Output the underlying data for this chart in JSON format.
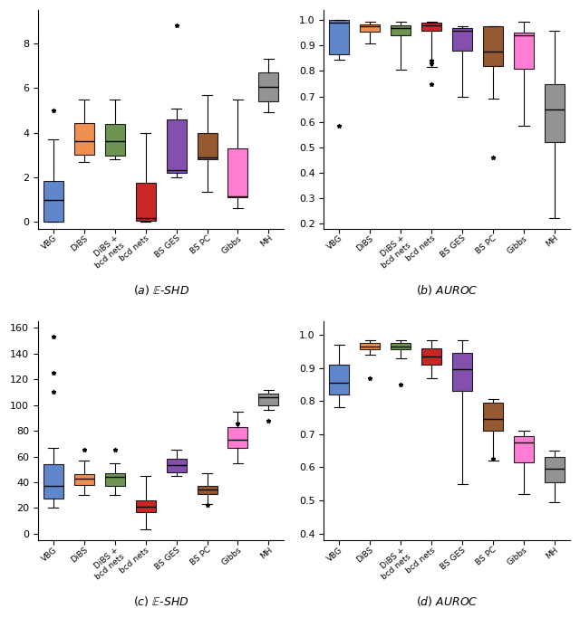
{
  "a_boxes": [
    {
      "label": "VBG",
      "color": "#4472C4",
      "whislo": 0.0,
      "q1": 0.0,
      "med": 1.0,
      "q3": 1.85,
      "whishi": 3.7,
      "fliers": [
        5.0
      ]
    },
    {
      "label": "DiBS",
      "color": "#ED7D31",
      "whislo": 2.7,
      "q1": 3.0,
      "med": 3.6,
      "q3": 4.45,
      "whishi": 5.5,
      "fliers": []
    },
    {
      "label": "DiBS +\nbcd nets",
      "color": "#548235",
      "whislo": 2.8,
      "q1": 2.95,
      "med": 3.6,
      "q3": 4.4,
      "whishi": 5.5,
      "fliers": []
    },
    {
      "label": "bcd nets",
      "color": "#C00000",
      "whislo": 0.0,
      "q1": 0.05,
      "med": 0.15,
      "q3": 1.75,
      "whishi": 4.0,
      "fliers": []
    },
    {
      "label": "BS GES",
      "color": "#7030A0",
      "whislo": 2.0,
      "q1": 2.2,
      "med": 2.3,
      "q3": 4.6,
      "whishi": 5.1,
      "fliers": [
        8.8
      ]
    },
    {
      "label": "BS PC",
      "color": "#843C0C",
      "whislo": 1.35,
      "q1": 2.8,
      "med": 2.9,
      "q3": 4.0,
      "whishi": 5.7,
      "fliers": []
    },
    {
      "label": "Gibbs",
      "color": "#FF66CC",
      "whislo": 0.6,
      "q1": 1.1,
      "med": 1.15,
      "q3": 3.3,
      "whishi": 5.5,
      "fliers": []
    },
    {
      "label": "MH",
      "color": "#808080",
      "whislo": 4.9,
      "q1": 5.4,
      "med": 6.05,
      "q3": 6.7,
      "whishi": 7.3,
      "fliers": []
    }
  ],
  "b_boxes": [
    {
      "label": "VBG",
      "color": "#4472C4",
      "whislo": 0.845,
      "q1": 0.865,
      "med": 0.99,
      "q3": 1.0,
      "whishi": 1.0,
      "fliers": [
        0.585
      ]
    },
    {
      "label": "DiBS",
      "color": "#ED7D31",
      "whislo": 0.91,
      "q1": 0.955,
      "med": 0.975,
      "q3": 0.985,
      "whishi": 0.995,
      "fliers": []
    },
    {
      "label": "DiBS +\nbcd nets",
      "color": "#548235",
      "whislo": 0.805,
      "q1": 0.94,
      "med": 0.97,
      "q3": 0.98,
      "whishi": 0.995,
      "fliers": []
    },
    {
      "label": "bcd nets",
      "color": "#C00000",
      "whislo": 0.815,
      "q1": 0.96,
      "med": 0.98,
      "q3": 0.99,
      "whishi": 0.995,
      "fliers": [
        0.84,
        0.83,
        0.75
      ]
    },
    {
      "label": "BS GES",
      "color": "#7030A0",
      "whislo": 0.7,
      "q1": 0.88,
      "med": 0.96,
      "q3": 0.97,
      "whishi": 0.975,
      "fliers": []
    },
    {
      "label": "BS PC",
      "color": "#843C0C",
      "whislo": 0.69,
      "q1": 0.82,
      "med": 0.875,
      "q3": 0.975,
      "whishi": 0.975,
      "fliers": [
        0.46
      ]
    },
    {
      "label": "Gibbs",
      "color": "#FF66CC",
      "whislo": 0.585,
      "q1": 0.81,
      "med": 0.94,
      "q3": 0.95,
      "whishi": 0.995,
      "fliers": []
    },
    {
      "label": "MH",
      "color": "#808080",
      "whislo": 0.22,
      "q1": 0.52,
      "med": 0.65,
      "q3": 0.75,
      "whishi": 0.96,
      "fliers": []
    }
  ],
  "c_boxes": [
    {
      "label": "VBG",
      "color": "#4472C4",
      "whislo": 20.0,
      "q1": 27.0,
      "med": 37.0,
      "q3": 54.0,
      "whishi": 67.0,
      "fliers": [
        110.0,
        125.0,
        153.0
      ]
    },
    {
      "label": "DiBS",
      "color": "#ED7D31",
      "whislo": 30.0,
      "q1": 38.0,
      "med": 43.0,
      "q3": 46.0,
      "whishi": 57.0,
      "fliers": [
        65.0
      ]
    },
    {
      "label": "DiBS +\nbcd nets",
      "color": "#548235",
      "whislo": 30.0,
      "q1": 37.0,
      "med": 44.0,
      "q3": 47.0,
      "whishi": 55.0,
      "fliers": [
        65.0
      ]
    },
    {
      "label": "bcd nets",
      "color": "#C00000",
      "whislo": 3.0,
      "q1": 17.0,
      "med": 21.0,
      "q3": 26.0,
      "whishi": 45.0,
      "fliers": []
    },
    {
      "label": "BS GES",
      "color": "#7030A0",
      "whislo": 45.0,
      "q1": 48.0,
      "med": 53.0,
      "q3": 58.0,
      "whishi": 65.0,
      "fliers": []
    },
    {
      "label": "BS PC",
      "color": "#843C0C",
      "whislo": 23.0,
      "q1": 31.0,
      "med": 34.5,
      "q3": 37.0,
      "whishi": 47.0,
      "fliers": [
        22.0
      ]
    },
    {
      "label": "Gibbs",
      "color": "#FF66CC",
      "whislo": 55.0,
      "q1": 67.0,
      "med": 73.0,
      "q3": 83.0,
      "whishi": 95.0,
      "fliers": [
        86.0
      ]
    },
    {
      "label": "MH",
      "color": "#808080",
      "whislo": 96.0,
      "q1": 100.0,
      "med": 106.0,
      "q3": 109.0,
      "whishi": 112.0,
      "fliers": [
        88.0
      ]
    }
  ],
  "d_boxes": [
    {
      "label": "VBG",
      "color": "#4472C4",
      "whislo": 0.78,
      "q1": 0.82,
      "med": 0.855,
      "q3": 0.91,
      "whishi": 0.97,
      "fliers": []
    },
    {
      "label": "DiBS",
      "color": "#ED7D31",
      "whislo": 0.94,
      "q1": 0.955,
      "med": 0.965,
      "q3": 0.975,
      "whishi": 0.985,
      "fliers": [
        0.87
      ]
    },
    {
      "label": "DiBS +\nbcd nets",
      "color": "#548235",
      "whislo": 0.93,
      "q1": 0.955,
      "med": 0.965,
      "q3": 0.975,
      "whishi": 0.985,
      "fliers": [
        0.85
      ]
    },
    {
      "label": "bcd nets",
      "color": "#C00000",
      "whislo": 0.87,
      "q1": 0.91,
      "med": 0.935,
      "q3": 0.96,
      "whishi": 0.985,
      "fliers": []
    },
    {
      "label": "BS GES",
      "color": "#7030A0",
      "whislo": 0.55,
      "q1": 0.83,
      "med": 0.895,
      "q3": 0.945,
      "whishi": 0.985,
      "fliers": []
    },
    {
      "label": "BS PC",
      "color": "#843C0C",
      "whislo": 0.62,
      "q1": 0.71,
      "med": 0.745,
      "q3": 0.795,
      "whishi": 0.805,
      "fliers": [
        0.625
      ]
    },
    {
      "label": "Gibbs",
      "color": "#FF66CC",
      "whislo": 0.52,
      "q1": 0.615,
      "med": 0.675,
      "q3": 0.695,
      "whishi": 0.71,
      "fliers": []
    },
    {
      "label": "MH",
      "color": "#808080",
      "whislo": 0.495,
      "q1": 0.555,
      "med": 0.595,
      "q3": 0.63,
      "whishi": 0.65,
      "fliers": []
    }
  ],
  "fig_width": 6.4,
  "fig_height": 6.83,
  "background_color": "#FFFFFF"
}
